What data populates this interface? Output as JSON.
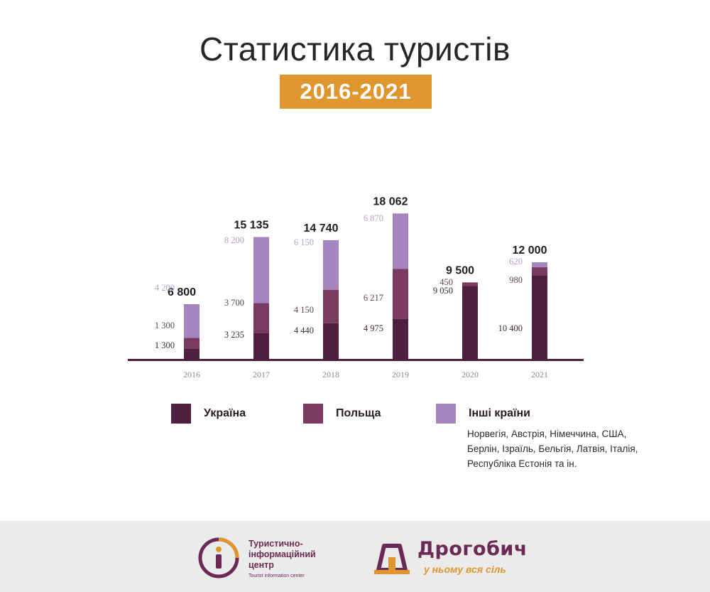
{
  "title": "Статистика туристів",
  "subtitle": "2016-2021",
  "chart_data": {
    "type": "bar",
    "stacked": true,
    "categories": [
      "2016",
      "2017",
      "2018",
      "2019",
      "2020",
      "2021"
    ],
    "series": [
      {
        "name": "Україна",
        "color": "#4e1f3e",
        "values": [
          1300,
          3235,
          4440,
          4975,
          9050,
          10400
        ],
        "labels": [
          "1 300",
          "3 235",
          "4 440",
          "4 975",
          "9 050",
          "10 400"
        ]
      },
      {
        "name": "Польща",
        "color": "#7b3a62",
        "values": [
          1300,
          3700,
          4150,
          6217,
          450,
          980
        ],
        "labels": [
          "1 300",
          "3 700",
          "4 150",
          "6 217",
          "450",
          "980"
        ]
      },
      {
        "name": "Інші країни",
        "color": "#a585bd",
        "values": [
          4200,
          8200,
          6150,
          6870,
          0,
          620
        ],
        "labels": [
          "4 200",
          "8 200",
          "6 150",
          "6 870",
          "",
          "620"
        ]
      }
    ],
    "totals": [
      6800,
      15135,
      14740,
      18062,
      9500,
      12000
    ],
    "total_labels": [
      "6 800",
      "15 135",
      "14 740",
      "18 062",
      "9 500",
      "12 000"
    ],
    "legend_note": "Норвегія, Австрія, Німеччина, США, Берлін, Ізраїль, Бельгія, Латвія, Італія, Республіка Естонія та ін.",
    "grid": false,
    "legend_position": "bottom"
  },
  "footer": {
    "tic_name_line1": "Туристично-",
    "tic_name_line2": "інформаційний",
    "tic_name_line3": "центр",
    "tic_name_en": "Tourist information center",
    "city_name": "Дрогобич",
    "city_slogan": "у ньому вся сіль"
  }
}
